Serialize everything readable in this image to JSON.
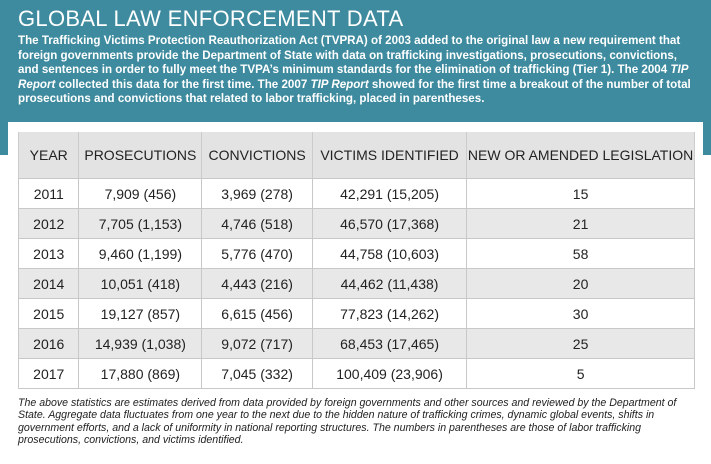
{
  "header": {
    "title": "GLOBAL LAW ENFORCEMENT DATA",
    "paragraph": [
      "The Trafficking Victims Protection Reauthorization Act (TVPRA) of 2003 added to the original law a new requirement that foreign governments provide the Department of State with data on trafficking investigations, prosecutions, convictions, and sentences in order to fully meet the TVPA’s minimum standards for the elimination of trafficking (Tier 1). The 2004 ",
      "TIP Report",
      " collected this data for the first time. The 2007 ",
      "TIP Report",
      " showed for the first time a breakout of the number of total prosecutions and convictions that related to labor trafficking, placed in parentheses."
    ]
  },
  "table": {
    "columns": [
      "YEAR",
      "PROSECUTIONS",
      "CONVICTIONS",
      "VICTIMS IDENTIFIED",
      "NEW OR AMENDED LEGISLATION"
    ],
    "rows": [
      [
        "2011",
        "7,909 (456)",
        "3,969 (278)",
        "42,291 (15,205)",
        "15"
      ],
      [
        "2012",
        "7,705 (1,153)",
        "4,746 (518)",
        "46,570 (17,368)",
        "21"
      ],
      [
        "2013",
        "9,460 (1,199)",
        "5,776 (470)",
        "44,758 (10,603)",
        "58"
      ],
      [
        "2014",
        "10,051 (418)",
        "4,443 (216)",
        "44,462 (11,438)",
        "20"
      ],
      [
        "2015",
        "19,127 (857)",
        "6,615 (456)",
        "77,823 (14,262)",
        "30"
      ],
      [
        "2016",
        "14,939 (1,038)",
        "9,072 (717)",
        "68,453 (17,465)",
        "25"
      ],
      [
        "2017",
        "17,880 (869)",
        "7,045 (332)",
        "100,409 (23,906)",
        "5"
      ]
    ]
  },
  "footnote": "The above statistics are estimates derived from data provided by foreign governments and other sources and reviewed by the Department of State. Aggregate data fluctuates from one year to the next due to the hidden nature of trafficking crimes, dynamic global events, shifts in government efforts, and a lack of uniformity in national reporting structures. The numbers in parentheses are those of labor trafficking prosecutions, convictions, and victims identified."
}
